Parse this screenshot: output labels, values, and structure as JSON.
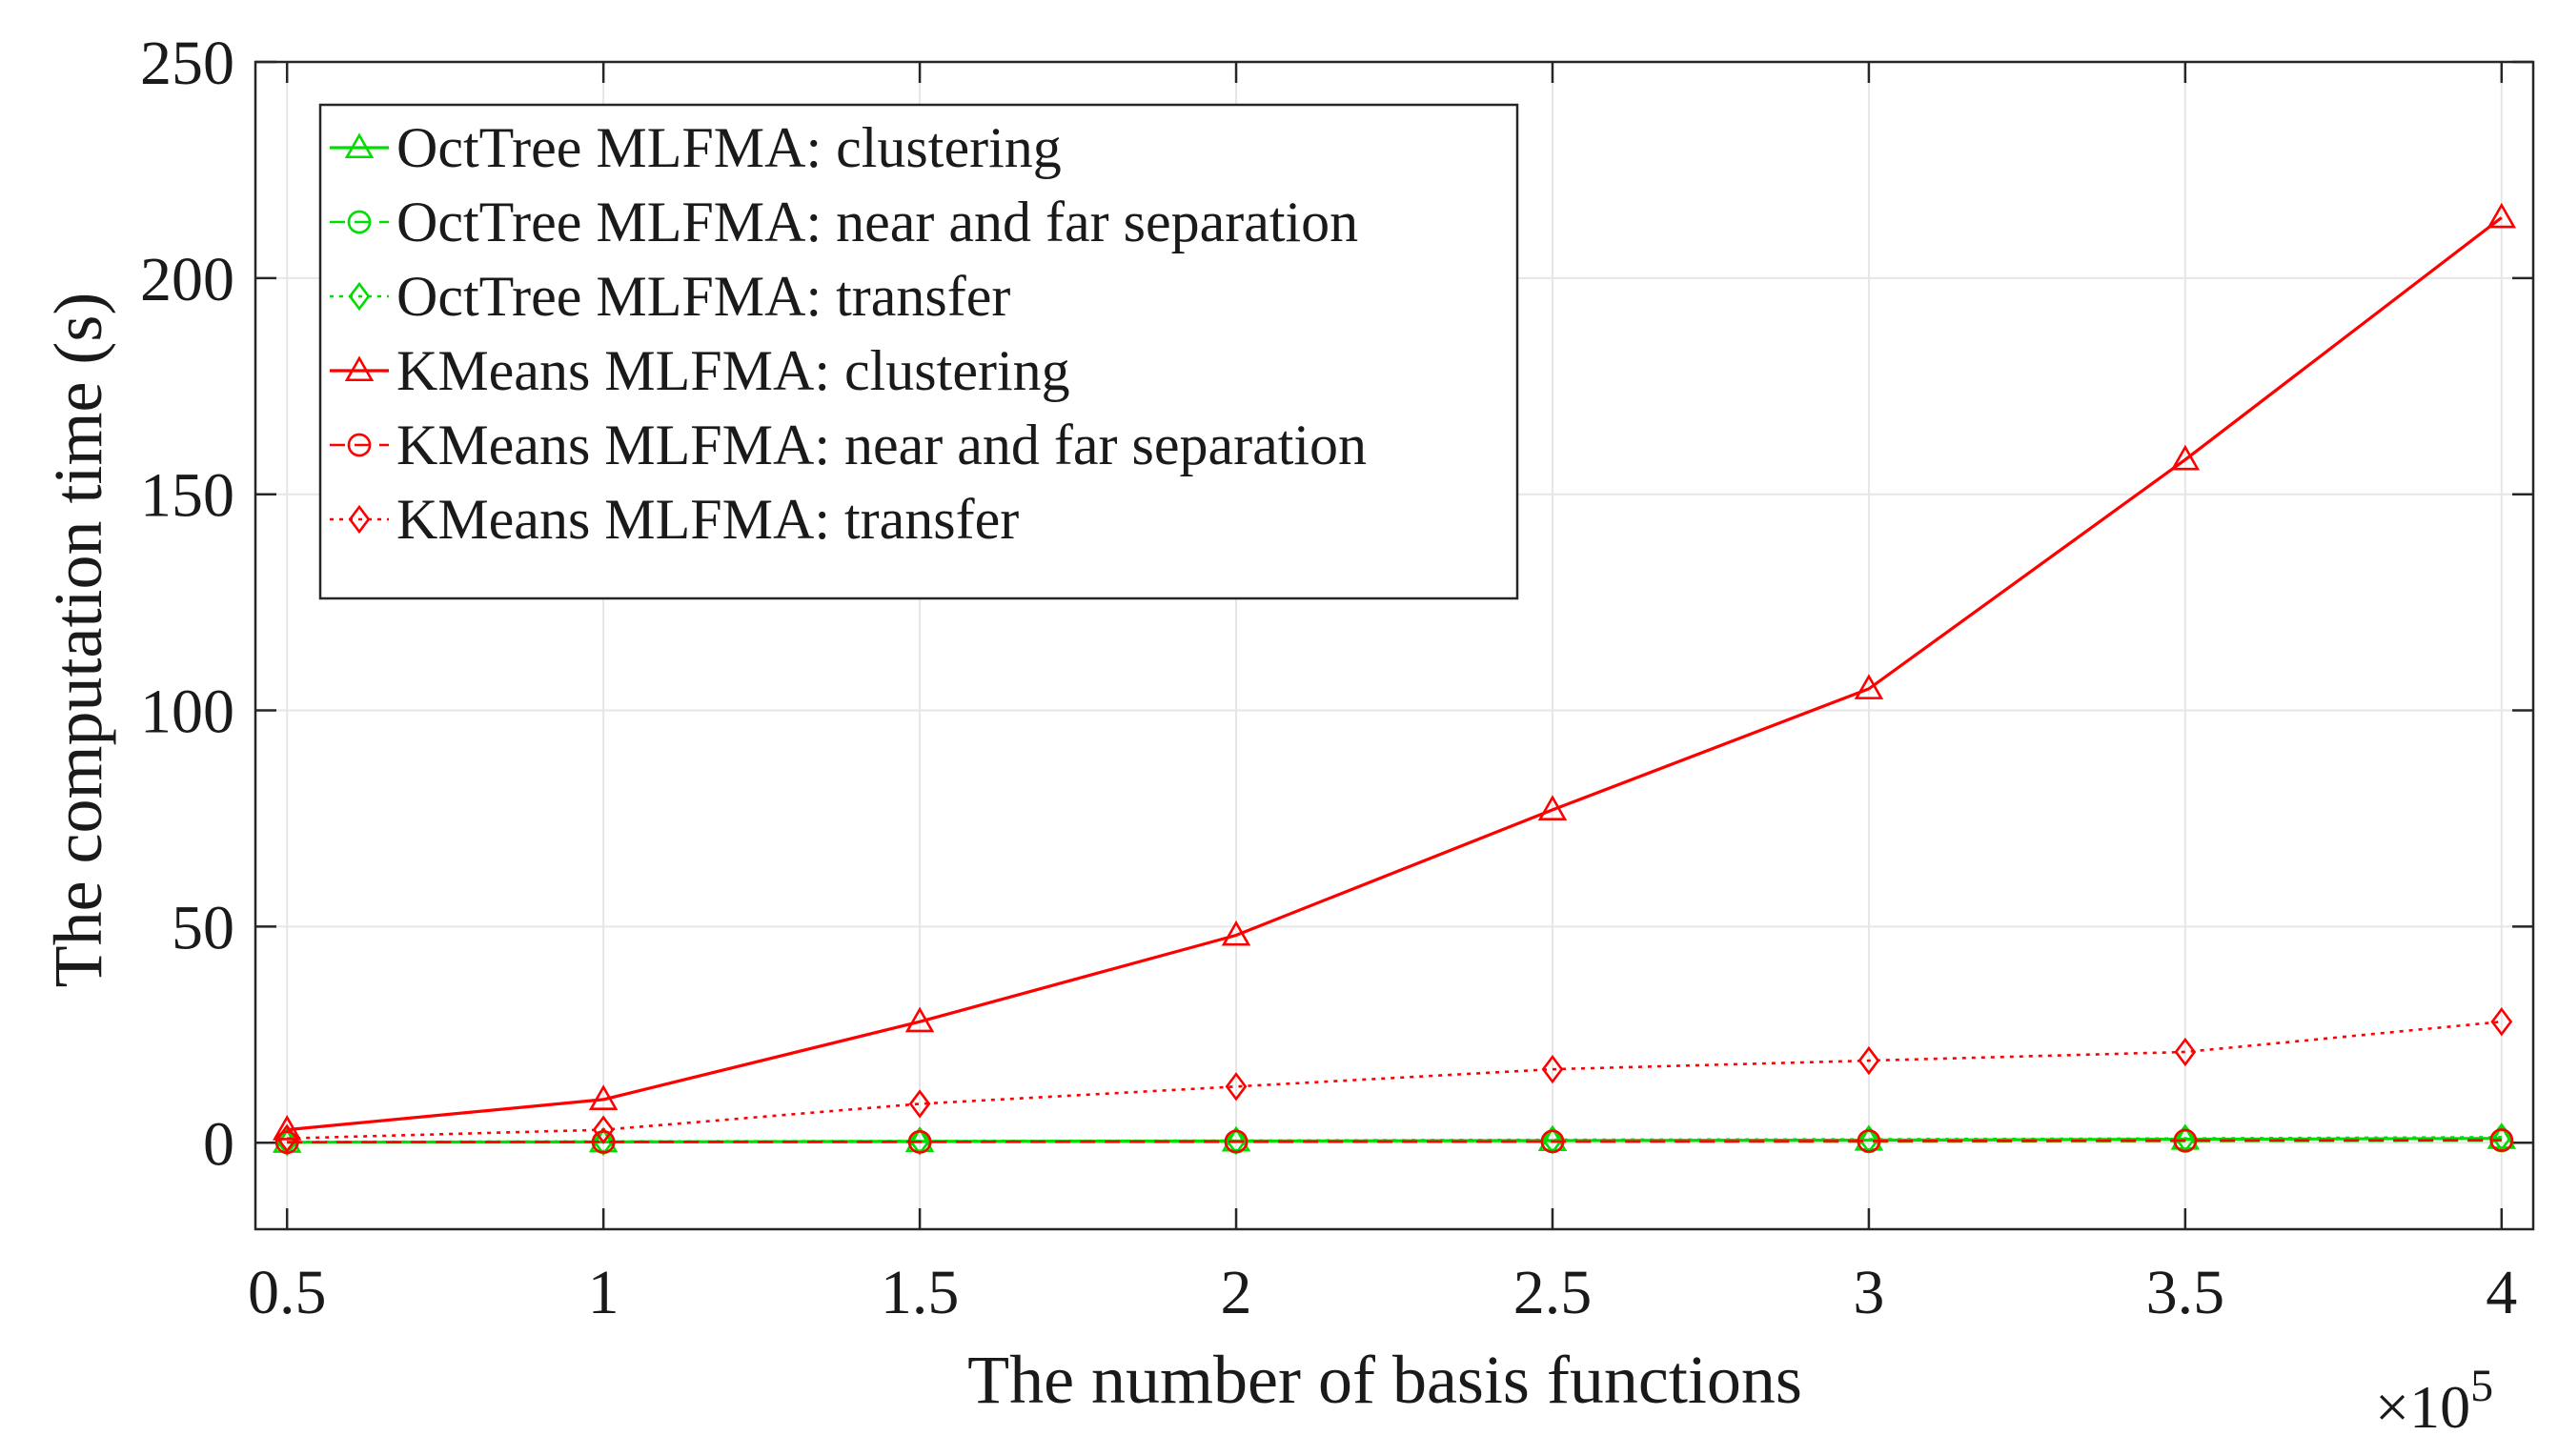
{
  "chart_data": {
    "type": "line",
    "title": "",
    "xlabel": "The number of basis functions",
    "ylabel": "The computation time (s)",
    "x_multiplier_text": "×10",
    "x_multiplier_exponent": "5",
    "x": [
      0.5,
      1,
      1.5,
      2,
      2.5,
      3,
      3.5,
      4
    ],
    "xlim": [
      0.45,
      4.05
    ],
    "ylim": [
      -20,
      250
    ],
    "xticks": [
      0.5,
      1,
      1.5,
      2,
      2.5,
      3,
      3.5,
      4
    ],
    "xtick_labels": [
      "0.5",
      "1",
      "1.5",
      "2",
      "2.5",
      "3",
      "3.5",
      "4"
    ],
    "yticks": [
      0,
      50,
      100,
      150,
      200,
      250
    ],
    "ytick_labels": [
      "0",
      "50",
      "100",
      "150",
      "200",
      "250"
    ],
    "grid": true,
    "legend_position": "top-left",
    "series": [
      {
        "name": "OctTree MLFMA: clustering",
        "color": "#00dd00",
        "line": "solid",
        "marker": "triangle",
        "values": [
          0.1,
          0.2,
          0.3,
          0.4,
          0.5,
          0.6,
          0.8,
          1.0
        ]
      },
      {
        "name": "OctTree MLFMA: near and far separation",
        "color": "#00dd00",
        "line": "dashed",
        "marker": "circle",
        "values": [
          0.1,
          0.1,
          0.2,
          0.2,
          0.3,
          0.3,
          0.4,
          0.5
        ]
      },
      {
        "name": "OctTree MLFMA: transfer",
        "color": "#00dd00",
        "line": "dotted",
        "marker": "diamond",
        "values": [
          0.2,
          0.3,
          0.4,
          0.5,
          0.7,
          0.8,
          1.0,
          1.3
        ]
      },
      {
        "name": "KMeans MLFMA: clustering",
        "color": "#ff0000",
        "line": "solid",
        "marker": "triangle",
        "values": [
          3,
          10,
          28,
          48,
          77,
          105,
          158,
          214
        ]
      },
      {
        "name": "KMeans MLFMA: near and far separation",
        "color": "#ff0000",
        "line": "dashed",
        "marker": "circle",
        "values": [
          0.1,
          0.2,
          0.2,
          0.3,
          0.3,
          0.4,
          0.5,
          0.6
        ]
      },
      {
        "name": "KMeans MLFMA: transfer",
        "color": "#ff0000",
        "line": "dotted",
        "marker": "diamond",
        "values": [
          1,
          3,
          9,
          13,
          17,
          19,
          21,
          28
        ]
      }
    ]
  }
}
